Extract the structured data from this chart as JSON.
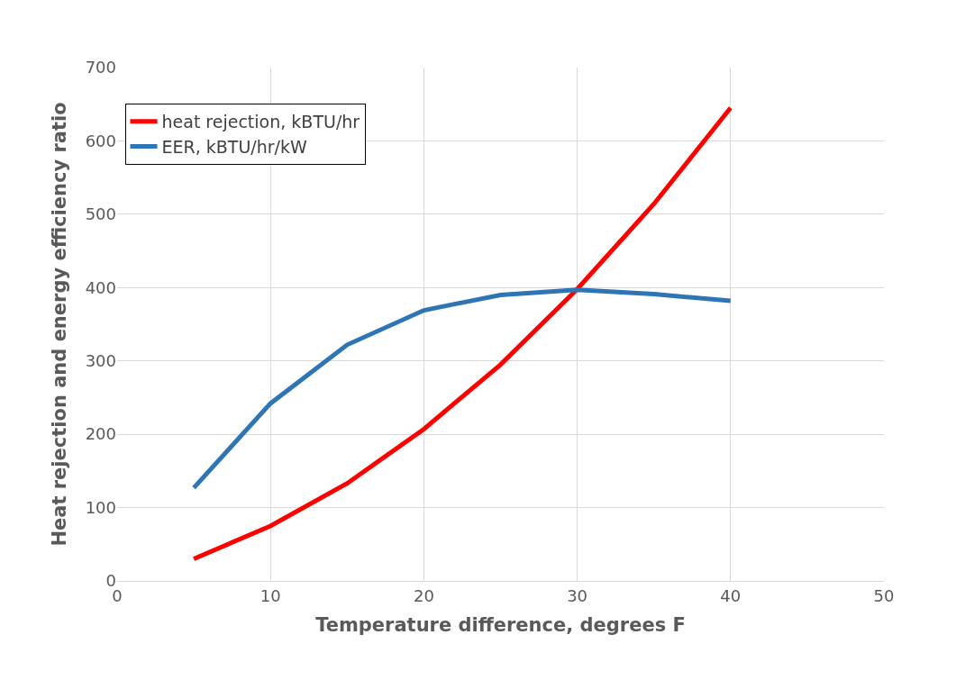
{
  "chart_data": {
    "type": "line",
    "xlabel": "Temperature difference, degrees F",
    "ylabel": "Heat rejection and energy efficiency ratio",
    "x": [
      5,
      10,
      15,
      20,
      25,
      30,
      35,
      40
    ],
    "series": [
      {
        "name": "heat rejection, kBTU/hr",
        "color": "#ff0000",
        "values": [
          30,
          75,
          133,
          207,
          295,
          398,
          514,
          645
        ]
      },
      {
        "name": "EER, kBTU/hr/kW",
        "color": "#2e75b6",
        "values": [
          127,
          242,
          322,
          369,
          390,
          397,
          391,
          382
        ]
      }
    ],
    "xlim": [
      0,
      50
    ],
    "xticks": [
      0,
      10,
      20,
      30,
      40,
      50
    ],
    "ylim": [
      0,
      700
    ],
    "yticks": [
      0,
      100,
      200,
      300,
      400,
      500,
      600,
      700
    ],
    "grid": true,
    "legend": "top left",
    "marker": "none",
    "line_style": "solid"
  }
}
